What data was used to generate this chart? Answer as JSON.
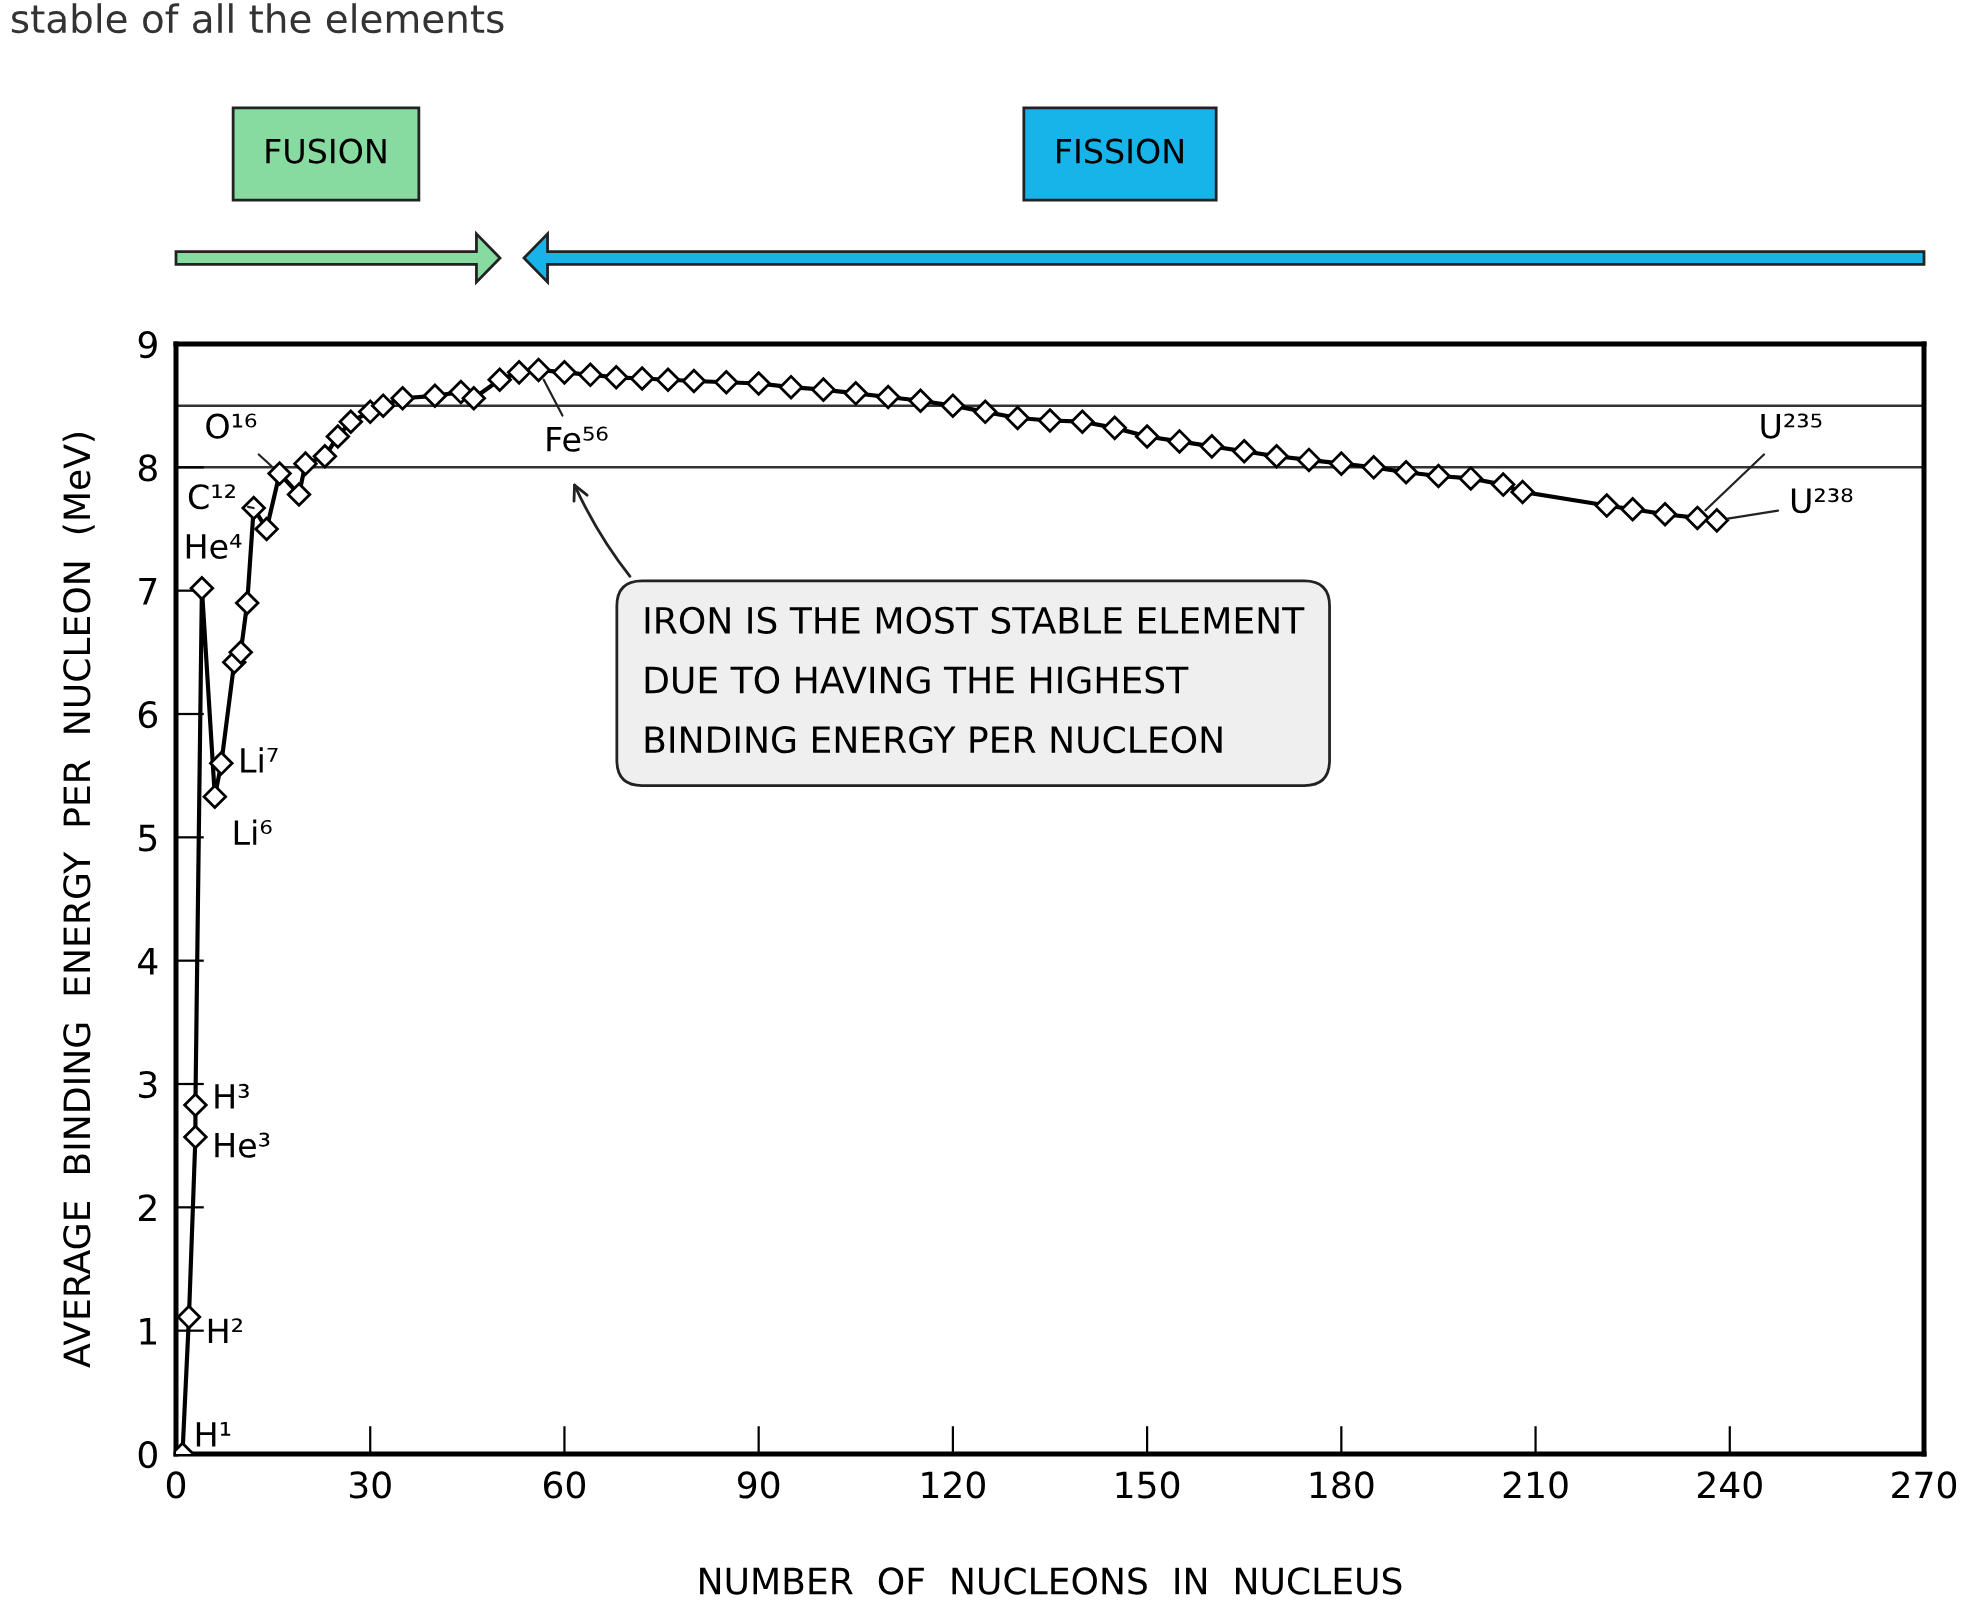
{
  "chart_data": {
    "type": "line",
    "xlabel": "NUMBER  OF  NUCLEONS  IN  NUCLEUS",
    "ylabel": "AVERAGE  BINDING  ENERGY  PER  NUCLEON  (MeV)",
    "xlim": [
      0,
      270
    ],
    "xticks": [
      0,
      30,
      60,
      90,
      120,
      150,
      180,
      210,
      240,
      270
    ],
    "ylim": [
      0,
      9
    ],
    "yticks": [
      0,
      1,
      2,
      3,
      4,
      5,
      6,
      7,
      8,
      9
    ],
    "grid": false,
    "marker": "diamond",
    "line_style": "solid",
    "ref_lines": [
      {
        "axis": "y",
        "value": 8
      },
      {
        "axis": "y",
        "value": 8.5
      }
    ],
    "series": [
      {
        "color": "#000000",
        "x": [
          1,
          2,
          3,
          3,
          4,
          6,
          7,
          9,
          10,
          11,
          12,
          14,
          16,
          19,
          20,
          23,
          25,
          27,
          30,
          32,
          35,
          40,
          44,
          46,
          50,
          53,
          56,
          60,
          64,
          68,
          72,
          76,
          80,
          85,
          90,
          95,
          100,
          105,
          110,
          115,
          120,
          125,
          130,
          135,
          140,
          145,
          150,
          155,
          160,
          165,
          170,
          175,
          180,
          185,
          190,
          195,
          200,
          205,
          208,
          221,
          225,
          230,
          235,
          238
        ],
        "values": [
          0,
          1.11,
          2.57,
          2.83,
          7.02,
          5.33,
          5.6,
          6.42,
          6.5,
          6.9,
          7.67,
          7.5,
          7.95,
          7.78,
          8.03,
          8.09,
          8.25,
          8.37,
          8.45,
          8.5,
          8.56,
          8.58,
          8.61,
          8.56,
          8.71,
          8.77,
          8.79,
          8.77,
          8.75,
          8.73,
          8.72,
          8.71,
          8.7,
          8.69,
          8.68,
          8.65,
          8.63,
          8.6,
          8.57,
          8.54,
          8.5,
          8.45,
          8.4,
          8.38,
          8.37,
          8.32,
          8.25,
          8.21,
          8.17,
          8.13,
          8.09,
          8.06,
          8.03,
          8.0,
          7.96,
          7.93,
          7.91,
          7.86,
          7.8,
          7.69,
          7.66,
          7.62,
          7.59,
          7.57
        ]
      }
    ],
    "annotations": [
      "stable of all the elements",
      "FUSION",
      "FISSION",
      {
        "text": "H¹",
        "x": 1,
        "y": 0
      },
      {
        "text": "H²",
        "x": 2,
        "y": 1.11
      },
      {
        "text": "He³",
        "x": 3,
        "y": 2.57
      },
      {
        "text": "H³",
        "x": 3,
        "y": 2.83
      },
      {
        "text": "He⁴",
        "x": 4,
        "y": 7.02
      },
      {
        "text": "Li⁶",
        "x": 6,
        "y": 5.33
      },
      {
        "text": "Li⁷",
        "x": 7,
        "y": 5.6
      },
      {
        "text": "C¹²",
        "x": 12,
        "y": 7.67
      },
      {
        "text": "O¹⁶",
        "x": 16,
        "y": 7.95
      },
      {
        "text": "Fe⁵⁶",
        "x": 56,
        "y": 8.79
      },
      {
        "text": "U²³⁵",
        "x": 235,
        "y": 7.59
      },
      {
        "text": "U²³⁸",
        "x": 238,
        "y": 7.57
      },
      "IRON IS THE MOST STABLE ELEMENT\nDUE TO HAVING THE HIGHEST\nBINDING ENERGY PER NUCLEON"
    ]
  }
}
